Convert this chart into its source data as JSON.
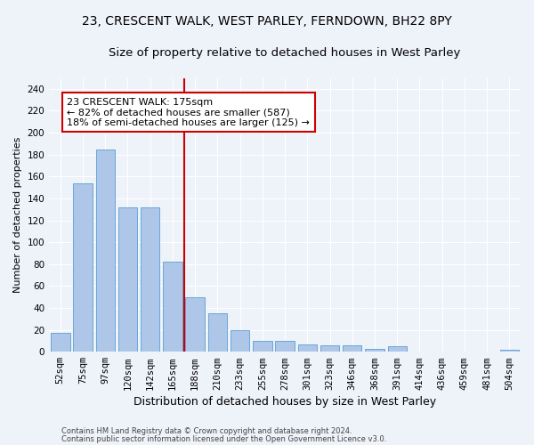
{
  "title_line1": "23, CRESCENT WALK, WEST PARLEY, FERNDOWN, BH22 8PY",
  "title_line2": "Size of property relative to detached houses in West Parley",
  "xlabel": "Distribution of detached houses by size in West Parley",
  "ylabel": "Number of detached properties",
  "bar_color": "#aec6e8",
  "bar_edge_color": "#5a9fd4",
  "categories": [
    "52sqm",
    "75sqm",
    "97sqm",
    "120sqm",
    "142sqm",
    "165sqm",
    "188sqm",
    "210sqm",
    "233sqm",
    "255sqm",
    "278sqm",
    "301sqm",
    "323sqm",
    "346sqm",
    "368sqm",
    "391sqm",
    "414sqm",
    "436sqm",
    "459sqm",
    "481sqm",
    "504sqm"
  ],
  "values": [
    17,
    154,
    185,
    132,
    132,
    82,
    50,
    35,
    20,
    10,
    10,
    7,
    6,
    6,
    3,
    5,
    0,
    0,
    0,
    0,
    2
  ],
  "vline_x_index": 6,
  "vline_color": "#cc0000",
  "annotation_text": "23 CRESCENT WALK: 175sqm\n← 82% of detached houses are smaller (587)\n18% of semi-detached houses are larger (125) →",
  "ylim": [
    0,
    250
  ],
  "yticks": [
    0,
    20,
    40,
    60,
    80,
    100,
    120,
    140,
    160,
    180,
    200,
    220,
    240
  ],
  "footer_line1": "Contains HM Land Registry data © Crown copyright and database right 2024.",
  "footer_line2": "Contains public sector information licensed under the Open Government Licence v3.0.",
  "background_color": "#eef2f9",
  "grid_color": "#ffffff",
  "title_fontsize": 10,
  "subtitle_fontsize": 9.5,
  "xlabel_fontsize": 9,
  "ylabel_fontsize": 8,
  "tick_fontsize": 7.5,
  "footer_fontsize": 6,
  "annotation_fontsize": 8
}
